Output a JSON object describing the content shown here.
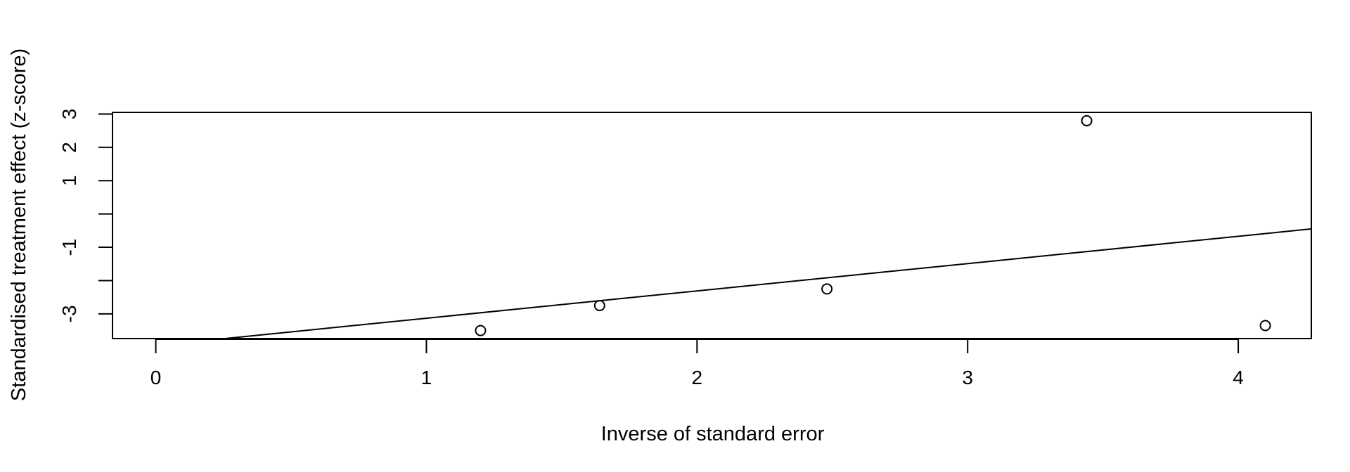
{
  "chart_data": {
    "type": "scatter",
    "title": "",
    "xlabel": "Inverse of standard error",
    "ylabel": "Standardised treatment effect (z-score)",
    "xlim": [
      -0.16,
      4.27
    ],
    "ylim": [
      -3.74,
      3.05
    ],
    "x_ticks": [
      0,
      1,
      2,
      3,
      4
    ],
    "x_tick_labels": [
      "0",
      "1",
      "2",
      "3",
      "4"
    ],
    "y_ticks": [
      -3,
      -2,
      -1,
      0,
      1,
      2,
      3
    ],
    "y_tick_labels": [
      "-3",
      "",
      "-1",
      "",
      "1",
      "2",
      "3"
    ],
    "grid": false,
    "series": [
      {
        "marker": "open-circle",
        "x": [
          1.2,
          1.64,
          2.48,
          3.44,
          4.1
        ],
        "y": [
          -3.5,
          -2.75,
          -2.25,
          2.8,
          -3.35
        ]
      }
    ],
    "regression_line": {
      "intercept": -3.95,
      "slope": 0.82
    },
    "colors": {
      "foreground": "#000000",
      "background": "#ffffff"
    }
  }
}
